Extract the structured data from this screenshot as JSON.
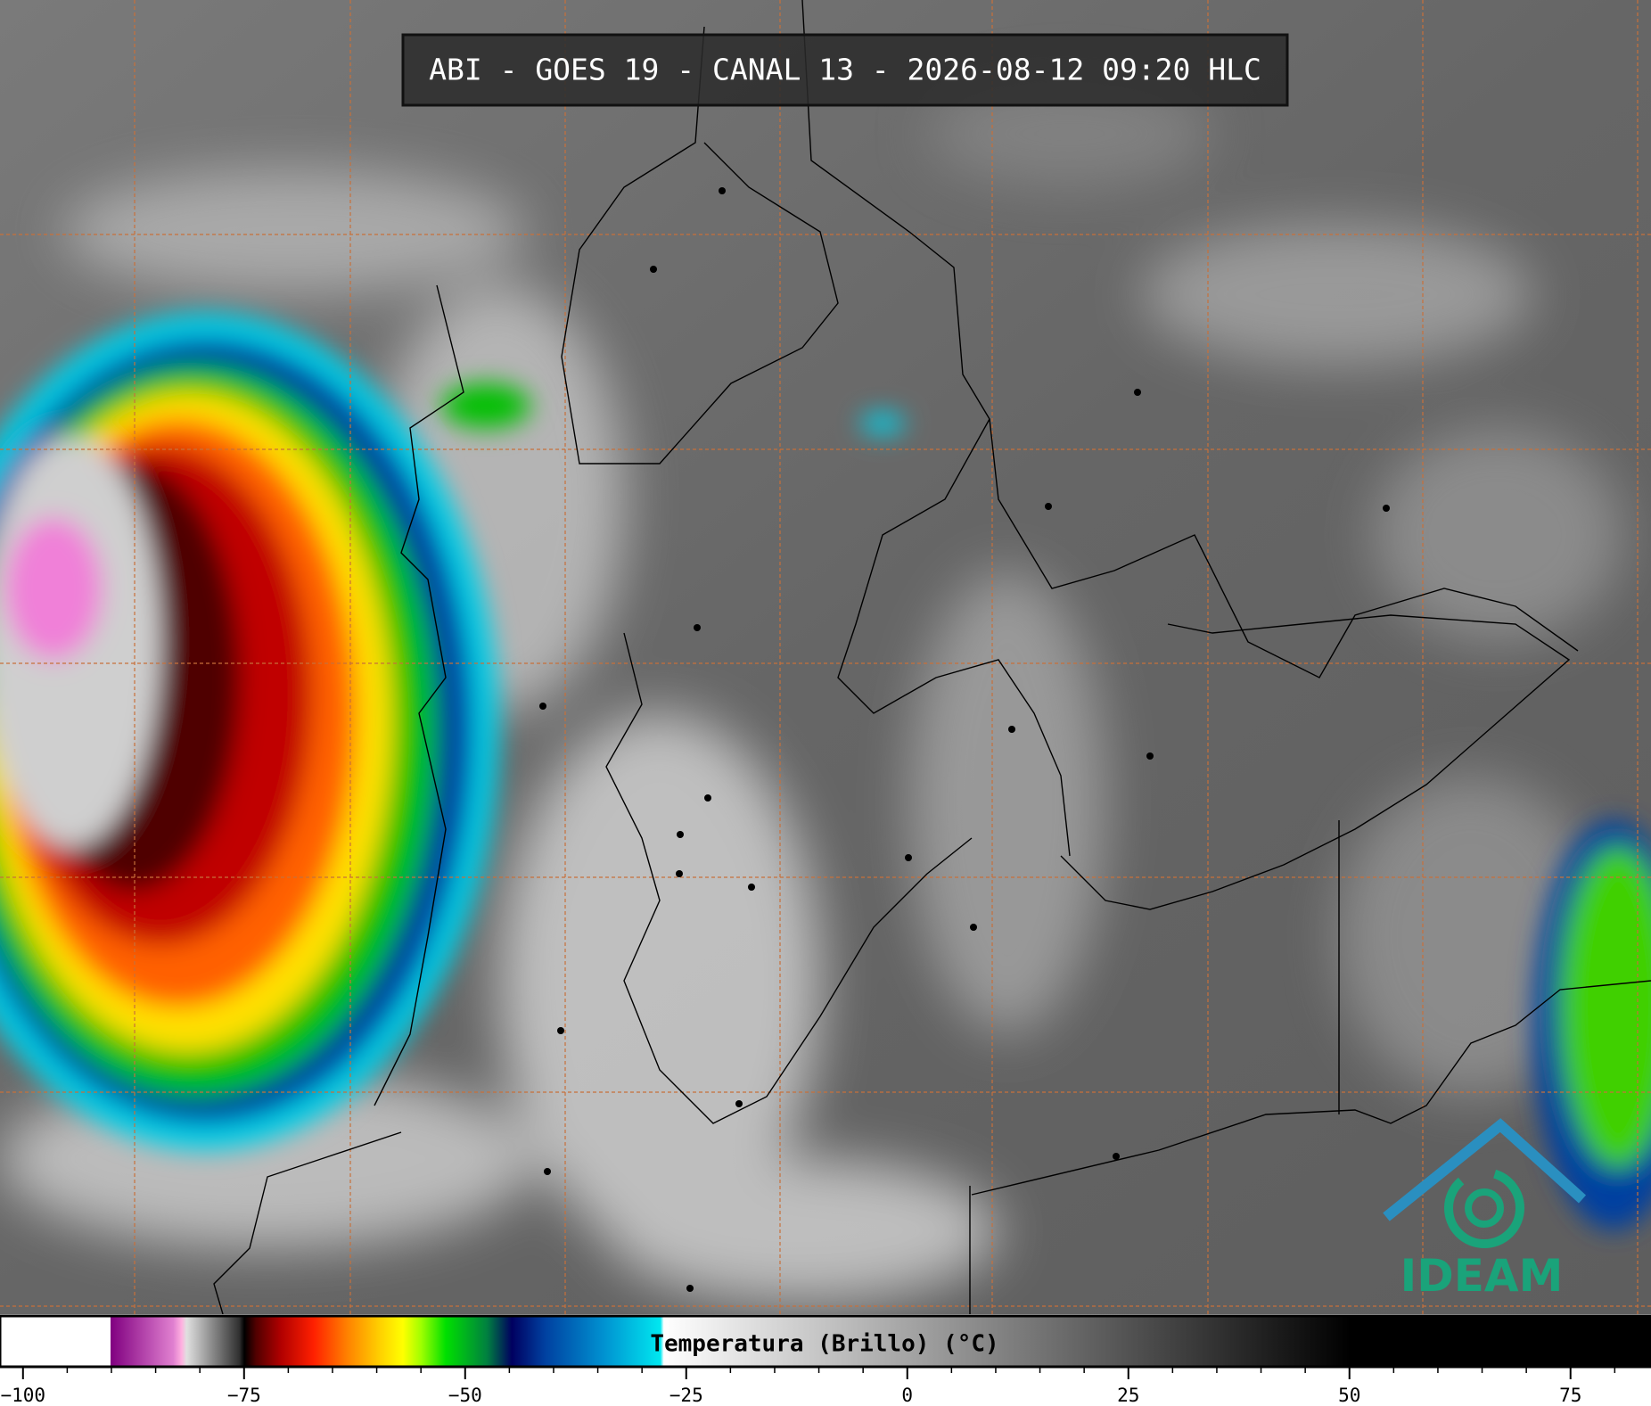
{
  "header": {
    "title": "ABI - GOES 19 - CANAL 13 - 2026-08-12 09:20 HLC"
  },
  "logo": "IDEAM",
  "colorbar": {
    "label": "Temperatura (Brillo) (°C)",
    "xlim": [
      -102.6,
      84.1
    ],
    "xticks": [
      {
        "value": -100,
        "label": "−100"
      },
      {
        "value": -75,
        "label": "−75"
      },
      {
        "value": -50,
        "label": "−50"
      },
      {
        "value": -25,
        "label": "−25"
      },
      0,
      25,
      50,
      75
    ],
    "minor_xticks": [
      -95,
      -90,
      -85,
      -80,
      -70,
      -65,
      -60,
      -55,
      -45,
      -40,
      -35,
      -30,
      -20,
      -15,
      -10,
      -5,
      5,
      10,
      15,
      20,
      30,
      35,
      40,
      45,
      55,
      60,
      65,
      70,
      80
    ]
  }
}
